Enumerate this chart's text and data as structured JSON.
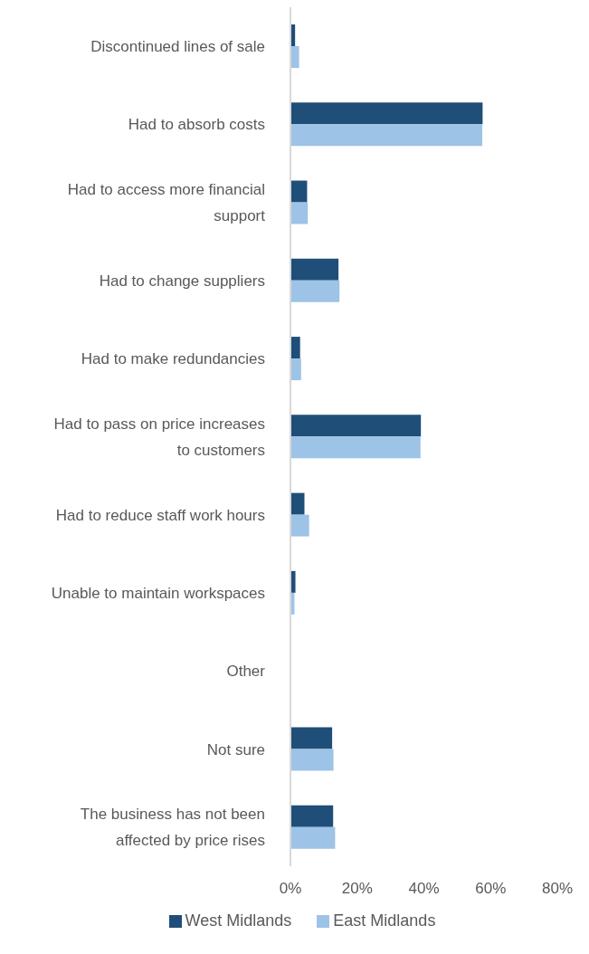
{
  "chart_data": {
    "type": "bar",
    "orientation": "horizontal",
    "categories": [
      "Discontinued lines of sale",
      "Had to absorb costs",
      "Had to access more financial support",
      "Had to change suppliers",
      "Had to make redundancies",
      "Had to pass on price increases to customers",
      "Had to reduce staff work hours",
      "Unable to maintain workspaces",
      "Other",
      "Not sure",
      "The business has not been affected by price rises"
    ],
    "series": [
      {
        "name": "West Midlands",
        "color": "#1f4e79",
        "values": [
          1.4,
          57.6,
          5.0,
          14.4,
          2.9,
          39.1,
          4.2,
          1.5,
          0,
          12.5,
          12.8
        ]
      },
      {
        "name": "East Midlands",
        "color": "#9dc3e6",
        "values": [
          2.6,
          57.5,
          5.2,
          14.7,
          3.2,
          39.0,
          5.6,
          1.2,
          0,
          12.9,
          13.4
        ]
      }
    ],
    "xlim": [
      0,
      80
    ],
    "xticks": [
      {
        "value": 0,
        "label": "0%"
      },
      {
        "value": 20,
        "label": "20%"
      },
      {
        "value": 40,
        "label": "40%"
      },
      {
        "value": 60,
        "label": "60%"
      },
      {
        "value": 80,
        "label": "80%"
      }
    ],
    "grid": false,
    "legend": "bottom"
  }
}
